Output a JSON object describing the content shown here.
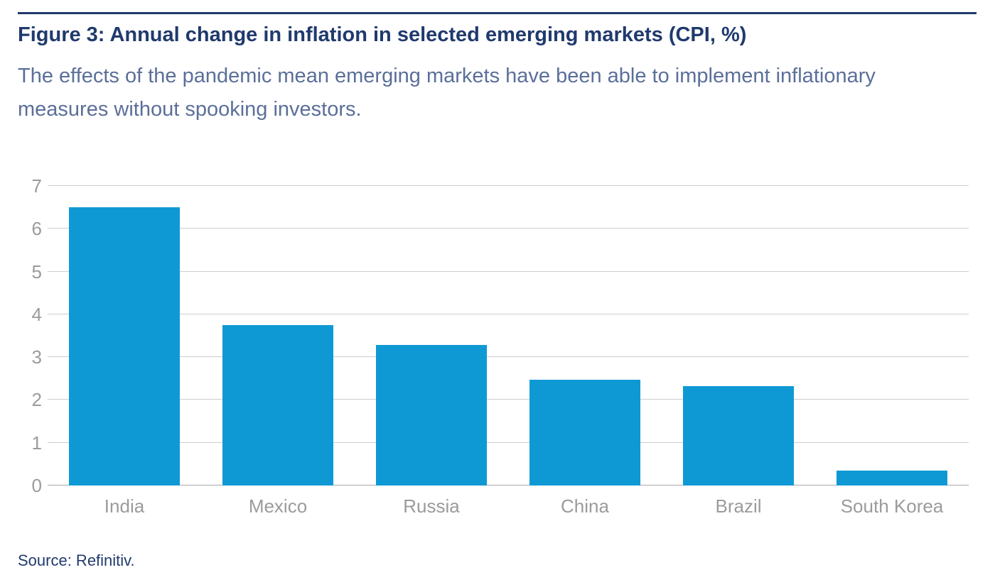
{
  "page": {
    "title": "Figure 3: Annual change in inflation in selected emerging markets (CPI, %)",
    "subtitle": "The effects of the pandemic mean emerging markets have been able to implement inflationary measures without spooking investors.",
    "source": "Source: Refinitiv."
  },
  "colors": {
    "accent_navy": "#203a6d",
    "subtitle_blue": "#5b6f99",
    "bar_blue": "#0f99d4",
    "axis_label_gray": "#9b9b9b",
    "gridline_gray": "#cdcdcd",
    "baseline_gray": "#a8a8a8"
  },
  "chart_data": {
    "type": "bar",
    "categories": [
      "India",
      "Mexico",
      "Russia",
      "China",
      "Brazil",
      "South Korea"
    ],
    "values": [
      6.5,
      3.75,
      3.28,
      2.47,
      2.33,
      0.35
    ],
    "title": "Figure 3: Annual change in inflation in selected emerging markets (CPI, %)",
    "subtitle": "The effects of the pandemic mean emerging markets have been able to implement inflationary measures without spooking investors.",
    "source": "Source: Refinitiv.",
    "xlabel": "",
    "ylabel": "",
    "ylim": [
      0,
      7
    ],
    "yticks": [
      0,
      1,
      2,
      3,
      4,
      5,
      6,
      7
    ],
    "grid": true,
    "legend": false,
    "bar_color": "#0f99d4"
  }
}
